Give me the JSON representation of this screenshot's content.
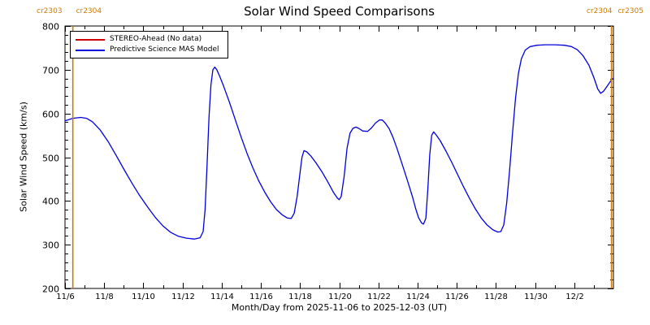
{
  "chart_data": {
    "type": "line",
    "title": "Solar Wind Speed Comparisons",
    "xlabel": "Month/Day from 2025-11-06 to 2025-12-03 (UT)",
    "ylabel": "Solar Wind Speed (km/s)",
    "xlim": [
      0,
      28
    ],
    "ylim": [
      200,
      800
    ],
    "grid": false,
    "legend_position": "top-left",
    "y_ticks": [
      200,
      300,
      400,
      500,
      600,
      700,
      800
    ],
    "x_ticks": [
      {
        "day": 0,
        "label": "11/6"
      },
      {
        "day": 2,
        "label": "11/8"
      },
      {
        "day": 4,
        "label": "11/10"
      },
      {
        "day": 6,
        "label": "11/12"
      },
      {
        "day": 8,
        "label": "11/14"
      },
      {
        "day": 10,
        "label": "11/16"
      },
      {
        "day": 12,
        "label": "11/18"
      },
      {
        "day": 14,
        "label": "11/20"
      },
      {
        "day": 16,
        "label": "11/22"
      },
      {
        "day": 18,
        "label": "11/24"
      },
      {
        "day": 20,
        "label": "11/26"
      },
      {
        "day": 22,
        "label": "11/28"
      },
      {
        "day": 24,
        "label": "11/30"
      },
      {
        "day": 26,
        "label": "12/2"
      }
    ],
    "annotations": {
      "top_left": [
        "cr2303",
        "cr2304"
      ],
      "top_right": [
        "cr2304",
        "cr2305"
      ]
    },
    "vlines": [
      {
        "day": 0.4,
        "color": "#cc7a00",
        "boundary": "cr2303/cr2304"
      },
      {
        "day": 27.9,
        "color": "#cc7a00",
        "boundary": "cr2304/cr2305"
      }
    ],
    "legend": [
      {
        "label": "STEREO-Ahead (No data)",
        "color": "#cc0000"
      },
      {
        "label": "Predictive Science MAS Model",
        "color": "#0000dd"
      }
    ],
    "series": [
      {
        "name": "STEREO-Ahead (No data)",
        "color": "#cc0000",
        "points": []
      },
      {
        "name": "Predictive Science MAS Model",
        "color": "#0000dd",
        "points": [
          [
            0,
            583
          ],
          [
            0.4,
            589
          ],
          [
            0.8,
            591
          ],
          [
            1.1,
            589
          ],
          [
            1.4,
            581
          ],
          [
            1.8,
            562
          ],
          [
            2.2,
            536
          ],
          [
            2.6,
            505
          ],
          [
            3,
            473
          ],
          [
            3.4,
            442
          ],
          [
            3.8,
            413
          ],
          [
            4.2,
            387
          ],
          [
            4.6,
            363
          ],
          [
            5,
            343
          ],
          [
            5.4,
            328
          ],
          [
            5.8,
            319
          ],
          [
            6.2,
            315
          ],
          [
            6.6,
            313
          ],
          [
            6.9,
            316
          ],
          [
            7.05,
            330
          ],
          [
            7.15,
            380
          ],
          [
            7.25,
            480
          ],
          [
            7.35,
            590
          ],
          [
            7.45,
            665
          ],
          [
            7.55,
            700
          ],
          [
            7.65,
            706
          ],
          [
            7.75,
            700
          ],
          [
            7.9,
            685
          ],
          [
            8.1,
            662
          ],
          [
            8.4,
            625
          ],
          [
            8.7,
            585
          ],
          [
            9,
            545
          ],
          [
            9.3,
            508
          ],
          [
            9.6,
            475
          ],
          [
            9.9,
            445
          ],
          [
            10.2,
            420
          ],
          [
            10.5,
            398
          ],
          [
            10.8,
            380
          ],
          [
            11.1,
            368
          ],
          [
            11.35,
            361
          ],
          [
            11.55,
            360
          ],
          [
            11.7,
            372
          ],
          [
            11.85,
            410
          ],
          [
            12,
            465
          ],
          [
            12.1,
            500
          ],
          [
            12.2,
            515
          ],
          [
            12.35,
            512
          ],
          [
            12.55,
            503
          ],
          [
            12.8,
            488
          ],
          [
            13.1,
            468
          ],
          [
            13.4,
            445
          ],
          [
            13.7,
            420
          ],
          [
            13.9,
            407
          ],
          [
            14,
            403
          ],
          [
            14.1,
            410
          ],
          [
            14.25,
            455
          ],
          [
            14.4,
            520
          ],
          [
            14.55,
            555
          ],
          [
            14.7,
            566
          ],
          [
            14.85,
            569
          ],
          [
            15,
            566
          ],
          [
            15.2,
            560
          ],
          [
            15.45,
            559
          ],
          [
            15.65,
            567
          ],
          [
            15.85,
            578
          ],
          [
            16.05,
            585
          ],
          [
            16.2,
            585
          ],
          [
            16.35,
            578
          ],
          [
            16.55,
            565
          ],
          [
            16.75,
            545
          ],
          [
            16.95,
            520
          ],
          [
            17.15,
            493
          ],
          [
            17.35,
            465
          ],
          [
            17.55,
            437
          ],
          [
            17.75,
            408
          ],
          [
            17.9,
            383
          ],
          [
            18.05,
            362
          ],
          [
            18.2,
            350
          ],
          [
            18.3,
            347
          ],
          [
            18.42,
            360
          ],
          [
            18.52,
            425
          ],
          [
            18.62,
            505
          ],
          [
            18.72,
            550
          ],
          [
            18.82,
            558
          ],
          [
            18.95,
            551
          ],
          [
            19.15,
            538
          ],
          [
            19.45,
            514
          ],
          [
            19.75,
            488
          ],
          [
            20.05,
            460
          ],
          [
            20.35,
            432
          ],
          [
            20.65,
            406
          ],
          [
            20.95,
            382
          ],
          [
            21.25,
            361
          ],
          [
            21.55,
            345
          ],
          [
            21.85,
            334
          ],
          [
            22.1,
            329
          ],
          [
            22.25,
            330
          ],
          [
            22.4,
            345
          ],
          [
            22.55,
            395
          ],
          [
            22.7,
            470
          ],
          [
            22.85,
            555
          ],
          [
            23,
            635
          ],
          [
            23.15,
            692
          ],
          [
            23.3,
            725
          ],
          [
            23.5,
            745
          ],
          [
            23.75,
            753
          ],
          [
            24.1,
            756
          ],
          [
            24.5,
            757
          ],
          [
            25,
            757
          ],
          [
            25.5,
            756
          ],
          [
            25.85,
            753
          ],
          [
            26.15,
            746
          ],
          [
            26.45,
            732
          ],
          [
            26.75,
            710
          ],
          [
            27,
            682
          ],
          [
            27.2,
            656
          ],
          [
            27.35,
            646
          ],
          [
            27.5,
            651
          ],
          [
            27.7,
            664
          ],
          [
            27.9,
            677
          ],
          [
            28,
            681
          ]
        ]
      }
    ],
    "colors": {
      "axis": "#000000",
      "background": "#ffffff",
      "carrington_line": "#cc7a00"
    }
  }
}
